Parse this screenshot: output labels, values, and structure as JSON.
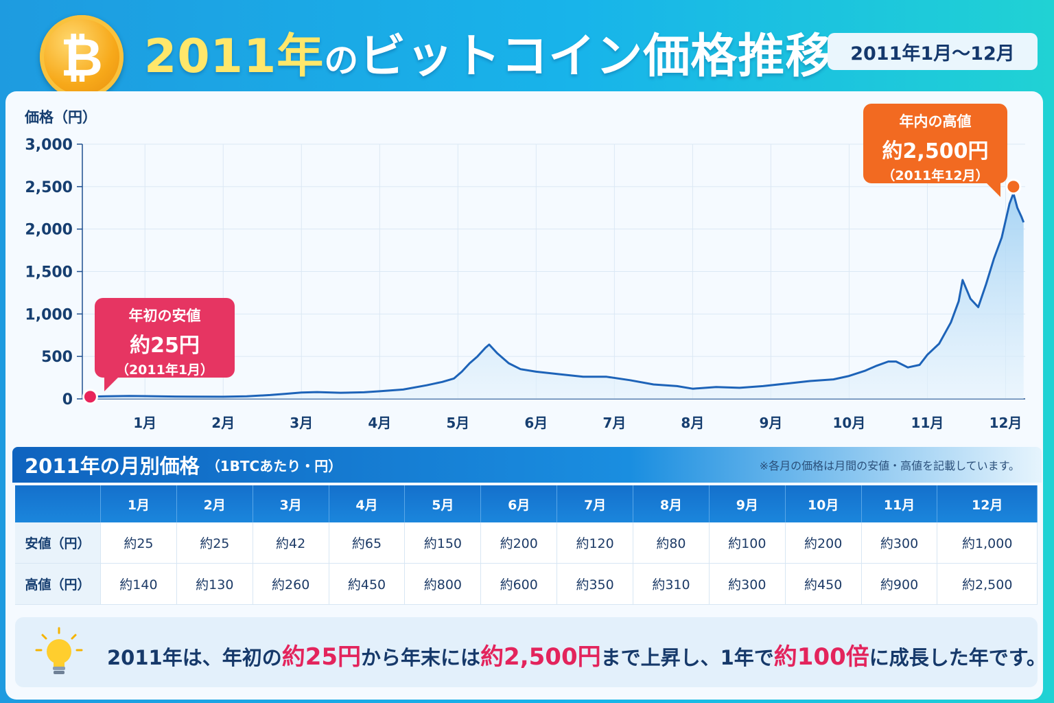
{
  "header": {
    "coin_symbol": "₿",
    "title_year": "2011年",
    "title_no": "の",
    "title_rest": "ビットコイン価格推移",
    "period": "2011年1月〜12月"
  },
  "callouts": {
    "low": {
      "l1": "年初の安値",
      "l2": "約25円",
      "l3": "（2011年1月）"
    },
    "high": {
      "l1": "年内の高値",
      "l2": "約2,500円",
      "l3": "（2011年12月）"
    }
  },
  "chart_data": {
    "type": "area",
    "ylabel": "価格（円）",
    "xlabel": "",
    "ylim": [
      0,
      3000
    ],
    "yticks": [
      0,
      500,
      1000,
      1500,
      2000,
      2500,
      3000
    ],
    "ytick_labels": [
      "0",
      "500",
      "1,000",
      "1,500",
      "2,000",
      "2,500",
      "3,000"
    ],
    "xticks": [
      1,
      2,
      3,
      4,
      5,
      6,
      7,
      8,
      9,
      10,
      11,
      12
    ],
    "xtick_labels": [
      "1月",
      "2月",
      "3月",
      "4月",
      "5月",
      "6月",
      "7月",
      "8月",
      "9月",
      "10月",
      "11月",
      "12月"
    ],
    "xlim": [
      0.2,
      12.25
    ],
    "grid": true,
    "colors": {
      "line": "#1d63b8",
      "fill": "#bfe0f8",
      "low_marker": "#e8245b",
      "high_marker": "#f26a21"
    },
    "series": [
      {
        "x": [
          0.25,
          0.5,
          0.8,
          1.0,
          1.3,
          1.6,
          2.0,
          2.3,
          2.6,
          2.8,
          3.0,
          3.2,
          3.5,
          3.8,
          4.0,
          4.3,
          4.6,
          4.8,
          4.95,
          5.05,
          5.15,
          5.25,
          5.35,
          5.4,
          5.5,
          5.65,
          5.8,
          6.0,
          6.3,
          6.6,
          6.9,
          7.2,
          7.5,
          7.8,
          8.0,
          8.3,
          8.6,
          8.9,
          9.2,
          9.5,
          9.8,
          10.0,
          10.2,
          10.35,
          10.5,
          10.6,
          10.75,
          10.9,
          11.0,
          11.15,
          11.3,
          11.4,
          11.45,
          11.55,
          11.65,
          11.75,
          11.85,
          11.95,
          12.0,
          12.05,
          12.1,
          12.15,
          12.2,
          12.23
        ],
        "y": [
          25,
          30,
          35,
          32,
          28,
          26,
          25,
          30,
          45,
          60,
          75,
          80,
          72,
          78,
          90,
          110,
          160,
          200,
          240,
          320,
          420,
          500,
          600,
          640,
          540,
          420,
          350,
          320,
          290,
          260,
          260,
          220,
          170,
          150,
          120,
          140,
          130,
          150,
          180,
          210,
          230,
          270,
          330,
          390,
          440,
          440,
          370,
          400,
          520,
          650,
          900,
          1150,
          1400,
          1180,
          1080,
          1350,
          1650,
          1900,
          2100,
          2300,
          2420,
          2250,
          2150,
          2080
        ]
      }
    ],
    "markers": [
      {
        "name": "low",
        "x": 0.3,
        "y": 25
      },
      {
        "name": "high",
        "x": 12.1,
        "y": 2500
      }
    ]
  },
  "table": {
    "title": "2011年の月別価格",
    "subtitle": "（1BTCあたり・円）",
    "note": "※各月の価格は月間の安値・高値を記載しています。",
    "months": [
      "1月",
      "2月",
      "3月",
      "4月",
      "5月",
      "6月",
      "7月",
      "8月",
      "9月",
      "10月",
      "11月",
      "12月"
    ],
    "rows": [
      {
        "label": "安値（円）",
        "values": [
          "約25",
          "約25",
          "約42",
          "約65",
          "約150",
          "約200",
          "約120",
          "約80",
          "約100",
          "約200",
          "約300",
          "約1,000"
        ]
      },
      {
        "label": "高値（円）",
        "values": [
          "約140",
          "約130",
          "約260",
          "約450",
          "約800",
          "約600",
          "約350",
          "約310",
          "約300",
          "約450",
          "約900",
          "約2,500"
        ]
      }
    ]
  },
  "summary": {
    "t1": "2011年は、年初の",
    "h1": "約25円",
    "t2": "から年末には",
    "h2": "約2,500円",
    "t3": "まで上昇し、1年で",
    "h3": "約100倍",
    "t4": "に成長した年です。"
  }
}
